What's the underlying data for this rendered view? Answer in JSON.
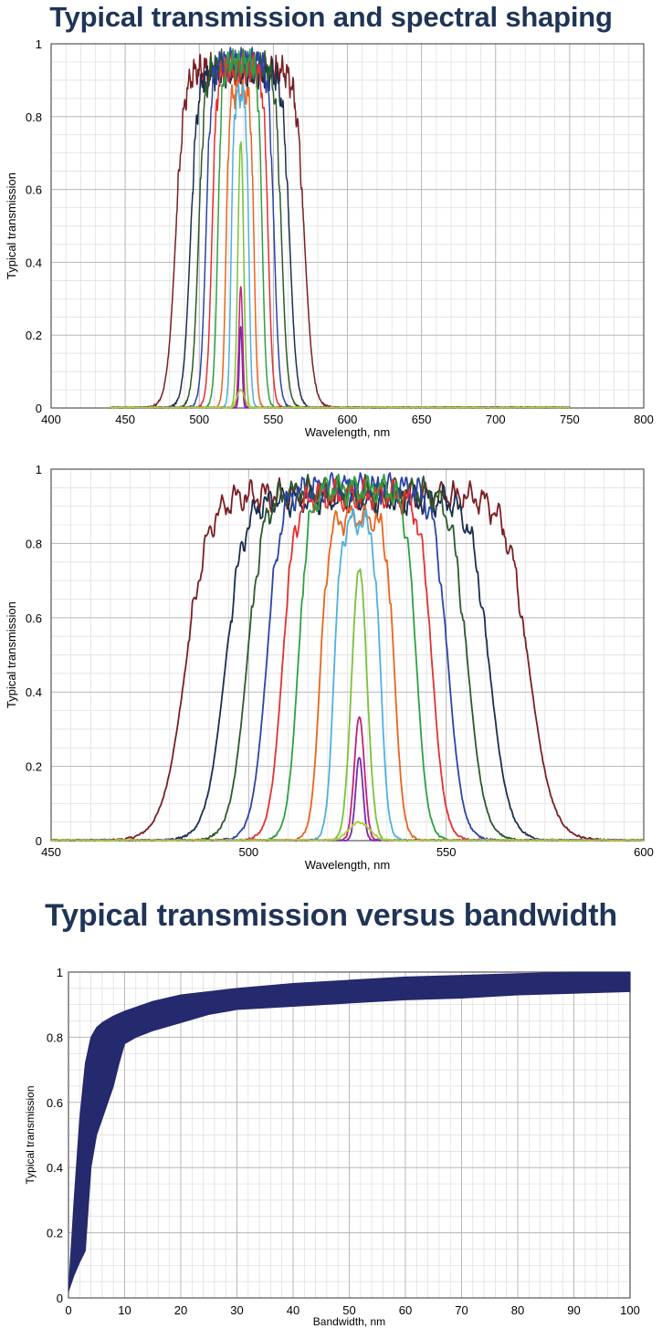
{
  "titles": {
    "top": "Typical transmission and spectral shaping",
    "bottom": "Typical transmission versus bandwidth"
  },
  "chart_data": [
    {
      "type": "line",
      "xlabel": "Wavelength, nm",
      "ylabel": "Typical transmission",
      "xlim": [
        400,
        800
      ],
      "ylim": [
        0,
        1
      ],
      "xticks": [
        "400",
        "450",
        "500",
        "550",
        "600",
        "650",
        "700",
        "750",
        "800"
      ],
      "yticks": [
        "0",
        "0.2",
        "0.4",
        "0.6",
        "0.8",
        "1"
      ],
      "grid": true,
      "data_range": [
        440,
        750
      ],
      "series": [
        {
          "color": "#7b1f24",
          "center": 527.5,
          "fwhm": 87,
          "peak": 0.93
        },
        {
          "color": "#1b2f4f",
          "center": 527.5,
          "fwhm": 67,
          "peak": 0.92
        },
        {
          "color": "#2c5a2c",
          "center": 527.5,
          "fwhm": 56,
          "peak": 0.94
        },
        {
          "color": "#2c44a8",
          "center": 527.5,
          "fwhm": 46,
          "peak": 0.95
        },
        {
          "color": "#e53030",
          "center": 527.5,
          "fwhm": 38,
          "peak": 0.93
        },
        {
          "color": "#2fa040",
          "center": 527.5,
          "fwhm": 30,
          "peak": 0.95
        },
        {
          "color": "#e8641e",
          "center": 527.5,
          "fwhm": 19,
          "peak": 0.87
        },
        {
          "color": "#4fb0e0",
          "center": 527.5,
          "fwhm": 12,
          "peak": 0.86
        },
        {
          "color": "#7ac23a",
          "center": 528,
          "fwhm": 4.5,
          "peak": 0.735
        },
        {
          "color": "#c2217f",
          "center": 528,
          "fwhm": 3,
          "peak": 0.335
        },
        {
          "color": "#7a2aa8",
          "center": 528,
          "fwhm": 2.2,
          "peak": 0.225
        },
        {
          "color": "#a8d040",
          "center": 528,
          "fwhm": 6,
          "peak": 0.05
        }
      ]
    },
    {
      "type": "line",
      "xlabel": "Wavelength, nm",
      "ylabel": "Typical transmission",
      "xlim": [
        450,
        600
      ],
      "ylim": [
        0,
        1
      ],
      "xticks": [
        "450",
        "500",
        "550",
        "600"
      ],
      "yticks": [
        "0",
        "0.2",
        "0.4",
        "0.6",
        "0.8",
        "1"
      ],
      "grid": true,
      "data_range": [
        450,
        600
      ],
      "series_ref": "same as chart 1 (zoomed)"
    },
    {
      "type": "area",
      "xlabel": "Bandwidth, nm",
      "ylabel": "Typical transmission",
      "xlim": [
        0,
        100
      ],
      "ylim": [
        0,
        1
      ],
      "xticks": [
        "0",
        "10",
        "20",
        "30",
        "40",
        "50",
        "60",
        "70",
        "80",
        "90",
        "100"
      ],
      "yticks": [
        "0",
        "0.2",
        "0.4",
        "0.6",
        "0.8",
        "1"
      ],
      "grid": true,
      "color": "#25296e",
      "upper": [
        [
          0,
          0.02
        ],
        [
          1,
          0.3
        ],
        [
          2,
          0.55
        ],
        [
          3,
          0.72
        ],
        [
          4,
          0.8
        ],
        [
          5,
          0.83
        ],
        [
          6,
          0.845
        ],
        [
          8,
          0.865
        ],
        [
          10,
          0.88
        ],
        [
          15,
          0.91
        ],
        [
          20,
          0.93
        ],
        [
          30,
          0.95
        ],
        [
          40,
          0.965
        ],
        [
          50,
          0.975
        ],
        [
          60,
          0.985
        ],
        [
          70,
          0.99
        ],
        [
          80,
          0.995
        ],
        [
          90,
          1.0
        ],
        [
          100,
          1.0
        ]
      ],
      "lower": [
        [
          0,
          0.02
        ],
        [
          1,
          0.07
        ],
        [
          2,
          0.11
        ],
        [
          3,
          0.145
        ],
        [
          4,
          0.4
        ],
        [
          5,
          0.5
        ],
        [
          6,
          0.55
        ],
        [
          7,
          0.6
        ],
        [
          8,
          0.65
        ],
        [
          9,
          0.72
        ],
        [
          10,
          0.78
        ],
        [
          12,
          0.8
        ],
        [
          15,
          0.82
        ],
        [
          20,
          0.845
        ],
        [
          25,
          0.87
        ],
        [
          30,
          0.885
        ],
        [
          40,
          0.895
        ],
        [
          50,
          0.905
        ],
        [
          60,
          0.915
        ],
        [
          70,
          0.92
        ],
        [
          80,
          0.93
        ],
        [
          90,
          0.935
        ],
        [
          100,
          0.94
        ]
      ]
    }
  ]
}
